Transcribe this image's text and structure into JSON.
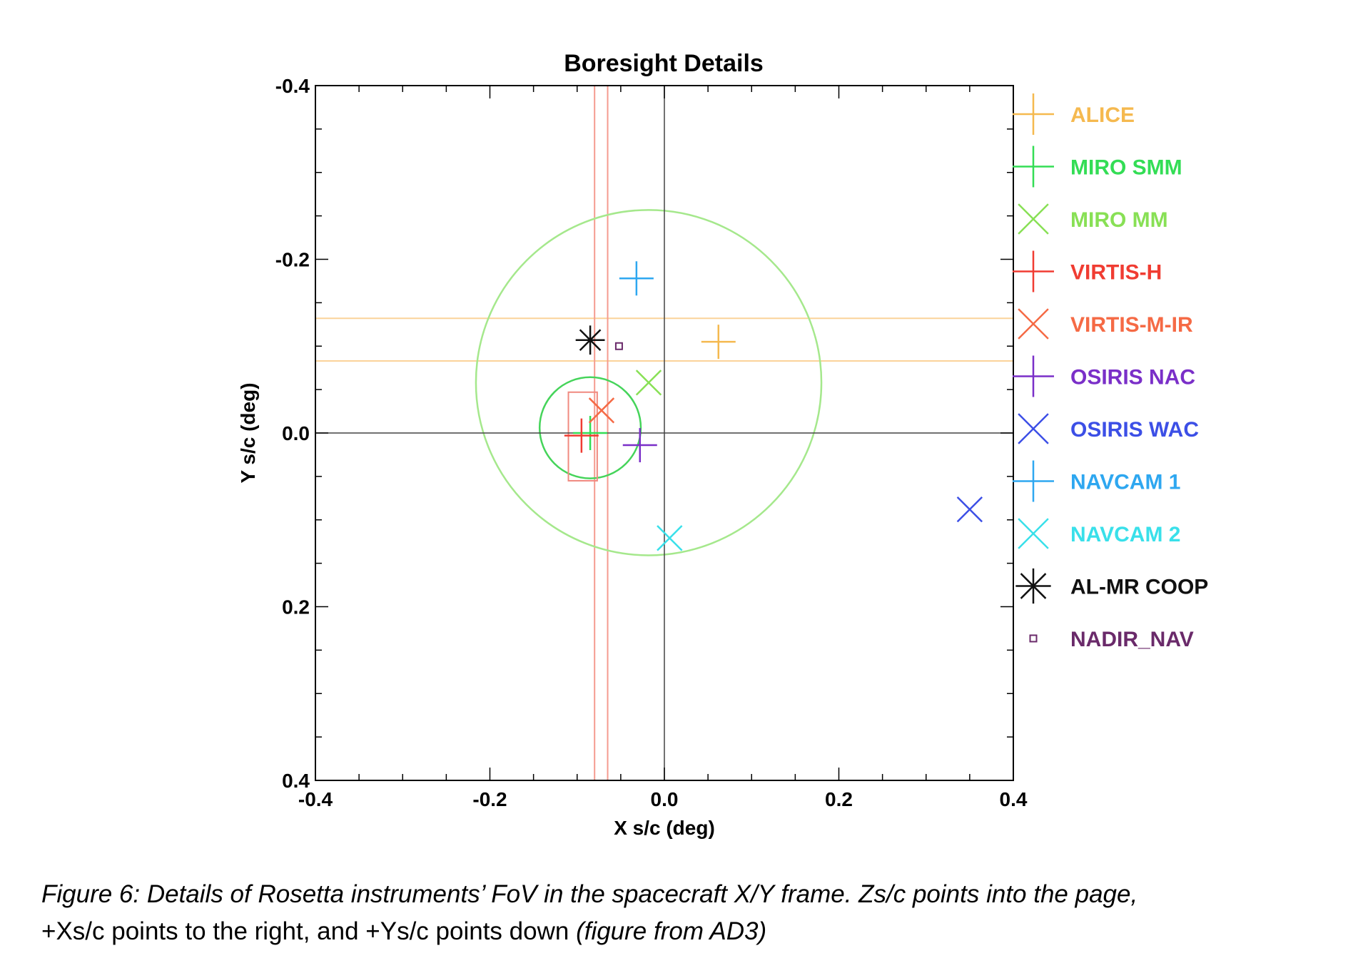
{
  "chart_data": {
    "type": "scatter",
    "title": "Boresight Details",
    "xlabel": "X s/c (deg)",
    "ylabel": "Y s/c (deg)",
    "xlim": [
      -0.4,
      0.4
    ],
    "ylim": [
      -0.4,
      0.4
    ],
    "y_axis_inverted": true,
    "grid": false,
    "zero_lines": true,
    "legend_position": "right",
    "x_ticks": [
      {
        "value": -0.4,
        "label": "-0.4"
      },
      {
        "value": -0.2,
        "label": "-0.2"
      },
      {
        "value": 0.0,
        "label": "0.0"
      },
      {
        "value": 0.2,
        "label": "0.2"
      },
      {
        "value": 0.4,
        "label": "0.4"
      }
    ],
    "y_ticks": [
      {
        "value": -0.4,
        "label": "-0.4"
      },
      {
        "value": -0.2,
        "label": "-0.2"
      },
      {
        "value": 0.0,
        "label": "0.0"
      },
      {
        "value": 0.2,
        "label": "0.2"
      },
      {
        "value": 0.4,
        "label": "0.4"
      }
    ],
    "series": [
      {
        "name": "ALICE",
        "marker": "plus",
        "color": "#f5b94f",
        "x": 0.062,
        "y": -0.105
      },
      {
        "name": "MIRO SMM",
        "marker": "plus",
        "color": "#33dd55",
        "x": -0.085,
        "y": 0.0
      },
      {
        "name": "MIRO MM",
        "marker": "x",
        "color": "#88e055",
        "x": -0.018,
        "y": -0.058
      },
      {
        "name": "VIRTIS-H",
        "marker": "plus",
        "color": "#f03c32",
        "x": -0.095,
        "y": 0.003
      },
      {
        "name": "VIRTIS-M-IR",
        "marker": "x",
        "color": "#f56a45",
        "x": -0.072,
        "y": -0.026
      },
      {
        "name": "OSIRIS NAC",
        "marker": "plus",
        "color": "#7a2fc8",
        "x": -0.028,
        "y": 0.014
      },
      {
        "name": "OSIRIS WAC",
        "marker": "x",
        "color": "#3c4fe6",
        "x": 0.35,
        "y": 0.088
      },
      {
        "name": "NAVCAM 1",
        "marker": "plus",
        "color": "#2ea7f0",
        "x": -0.032,
        "y": -0.178
      },
      {
        "name": "NAVCAM 2",
        "marker": "x",
        "color": "#39e0ea",
        "x": 0.006,
        "y": 0.121
      },
      {
        "name": "AL-MR COOP",
        "marker": "asterisk",
        "color": "#111111",
        "x": -0.085,
        "y": -0.107
      },
      {
        "name": "NADIR_NAV",
        "marker": "square",
        "color": "#6a2a6a",
        "x": -0.052,
        "y": -0.1
      }
    ],
    "fov_shapes": [
      {
        "instrument": "ALICE",
        "kind": "horizontal-strip",
        "color": "#fbd39a",
        "y_min": -0.132,
        "y_max": -0.083
      },
      {
        "instrument": "VIRTIS-H",
        "kind": "vertical-strip",
        "color": "#f59b8f",
        "x_min": -0.08,
        "x_max": -0.065
      },
      {
        "instrument": "MIRO MM",
        "kind": "circle",
        "color": "#a5e88c",
        "center_x": -0.018,
        "center_y": -0.058,
        "radius": 0.198
      },
      {
        "instrument": "MIRO SMM",
        "kind": "circle",
        "color": "#45d45a",
        "center_x": -0.085,
        "center_y": -0.006,
        "radius": 0.058
      },
      {
        "instrument": "VIRTIS-M-IR",
        "kind": "rectangle",
        "color": "#f08a80",
        "x_min": -0.11,
        "x_max": -0.077,
        "y_min": -0.047,
        "y_max": 0.055
      }
    ]
  },
  "caption": {
    "main": "Figure 6: Details of Rosetta instruments’ FoV in the spacecraft X/Y frame. Zs/c points into the page,",
    "second_line": "+Xs/c points to the right, and +Ys/c points down ",
    "source_note": "(figure from AD3)"
  }
}
